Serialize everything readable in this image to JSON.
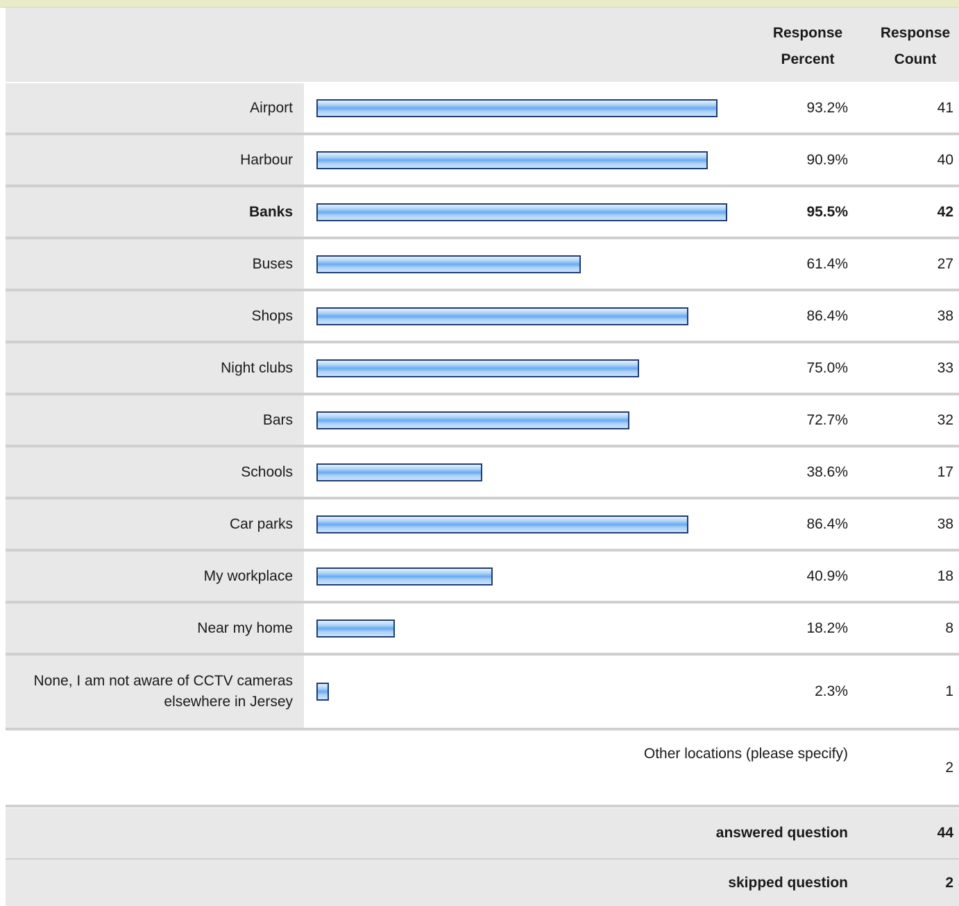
{
  "table": {
    "header": {
      "percent": "Response Percent",
      "count": "Response Count"
    },
    "other": {
      "label": "Other locations (please specify)",
      "count": "2"
    },
    "summary": [
      {
        "label": "answered question",
        "value": "44"
      },
      {
        "label": "skipped question",
        "value": "2"
      }
    ]
  },
  "chart_data": {
    "type": "bar",
    "orientation": "horizontal",
    "xlim": [
      0,
      100
    ],
    "bar_color": "#7db4f0",
    "bar_border_color": "#1e3d73",
    "categories": [
      "Airport",
      "Harbour",
      "Banks",
      "Buses",
      "Shops",
      "Night clubs",
      "Bars",
      "Schools",
      "Car parks",
      "My workplace",
      "Near my home",
      "None, I am not aware of CCTV cameras elsewhere in Jersey"
    ],
    "values": [
      93.2,
      90.9,
      95.5,
      61.4,
      86.4,
      75.0,
      72.7,
      38.6,
      86.4,
      40.9,
      18.2,
      2.3
    ],
    "percent_labels": [
      "93.2%",
      "90.9%",
      "95.5%",
      "61.4%",
      "86.4%",
      "75.0%",
      "72.7%",
      "38.6%",
      "86.4%",
      "40.9%",
      "18.2%",
      "2.3%"
    ],
    "counts": [
      "41",
      "40",
      "42",
      "27",
      "38",
      "33",
      "32",
      "17",
      "38",
      "18",
      "8",
      "1"
    ],
    "highlighted": "Banks"
  }
}
